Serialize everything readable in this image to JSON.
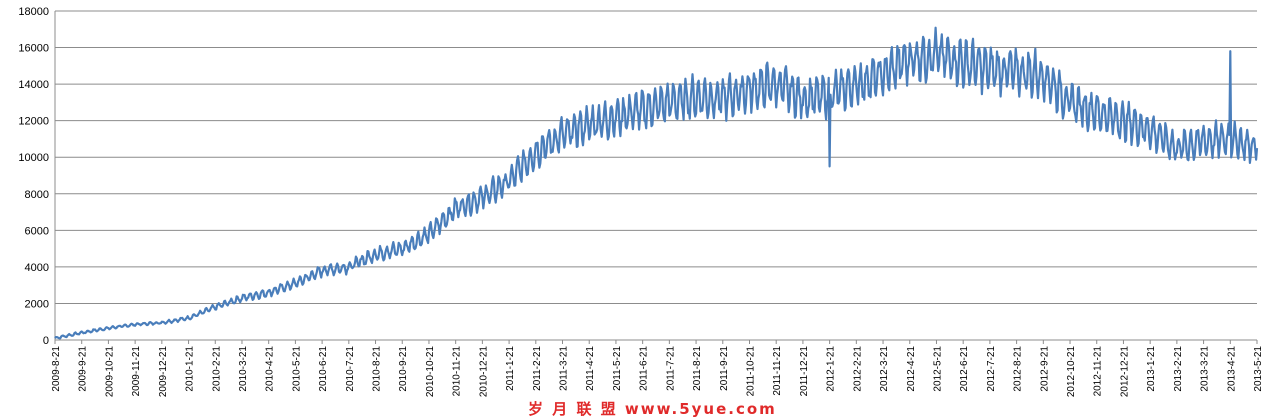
{
  "chart_data": {
    "type": "line",
    "title": "",
    "xlabel": "",
    "ylabel": "",
    "ylim": [
      0,
      18000
    ],
    "y_ticks": [
      0,
      2000,
      4000,
      6000,
      8000,
      10000,
      12000,
      14000,
      16000,
      18000
    ],
    "y_tick_labels": [
      "0",
      "2000",
      "4000",
      "6000",
      "8000",
      "10000",
      "12000",
      "14000",
      "16000",
      "18000"
    ],
    "x_tick_labels": [
      "2009-8-21",
      "2009-9-21",
      "2009-10-21",
      "2009-11-21",
      "2009-12-21",
      "2010-1-21",
      "2010-2-21",
      "2010-3-21",
      "2010-4-21",
      "2010-5-21",
      "2010-6-21",
      "2010-7-21",
      "2010-8-21",
      "2010-9-21",
      "2010-10-21",
      "2010-11-21",
      "2010-12-21",
      "2011-1-21",
      "2011-2-21",
      "2011-3-21",
      "2011-4-21",
      "2011-5-21",
      "2011-6-21",
      "2011-7-21",
      "2011-8-21",
      "2011-9-21",
      "2011-10-21",
      "2011-11-21",
      "2011-12-21",
      "2012-1-21",
      "2012-2-21",
      "2012-3-21",
      "2012-4-21",
      "2012-5-21",
      "2012-6-21",
      "2012-7-21",
      "2012-8-21",
      "2012-9-21",
      "2012-10-21",
      "2012-11-21",
      "2012-12-21",
      "2013-1-21",
      "2013-2-21",
      "2013-3-21",
      "2013-4-21",
      "2013-5-21"
    ],
    "grid": true,
    "legend": "none",
    "line_color": "#4a7ebb",
    "series": [
      {
        "x": [
          "2009-8-21",
          "2009-9-21",
          "2009-10-21",
          "2009-11-21",
          "2009-12-21",
          "2010-1-21",
          "2010-2-21",
          "2010-3-21",
          "2010-4-21",
          "2010-5-21",
          "2010-6-21",
          "2010-7-21",
          "2010-8-21",
          "2010-9-21",
          "2010-10-21",
          "2010-11-21",
          "2010-12-21",
          "2011-1-21",
          "2011-2-21",
          "2011-3-21",
          "2011-4-21",
          "2011-5-21",
          "2011-6-21",
          "2011-7-21",
          "2011-8-21",
          "2011-9-21",
          "2011-10-21",
          "2011-11-21",
          "2011-12-21",
          "2012-1-21",
          "2012-2-21",
          "2012-3-21",
          "2012-4-21",
          "2012-5-21",
          "2012-6-21",
          "2012-7-21",
          "2012-8-21",
          "2012-9-21",
          "2012-10-21",
          "2012-11-21",
          "2012-12-21",
          "2013-1-21",
          "2013-2-21",
          "2013-3-21",
          "2013-4-21",
          "2013-5-21"
        ],
        "values": [
          100,
          400,
          650,
          850,
          950,
          1200,
          1800,
          2300,
          2600,
          3100,
          3800,
          4000,
          4700,
          5000,
          5800,
          7200,
          7800,
          8700,
          10300,
          11200,
          11800,
          12200,
          12600,
          13000,
          13300,
          13200,
          13700,
          14000,
          13200,
          13400,
          14000,
          14500,
          15400,
          15600,
          15200,
          14800,
          14700,
          14500,
          13000,
          12500,
          12000,
          11500,
          10500,
          10900,
          11000,
          10500
        ]
      }
    ],
    "annotations": [
      {
        "x": "2012-1-21",
        "y": 9500,
        "note": "dip"
      },
      {
        "x": "2013-4-21",
        "y": 15800,
        "note": "spike"
      }
    ]
  },
  "watermark": "岁 月 联 盟   www.5yue.com"
}
